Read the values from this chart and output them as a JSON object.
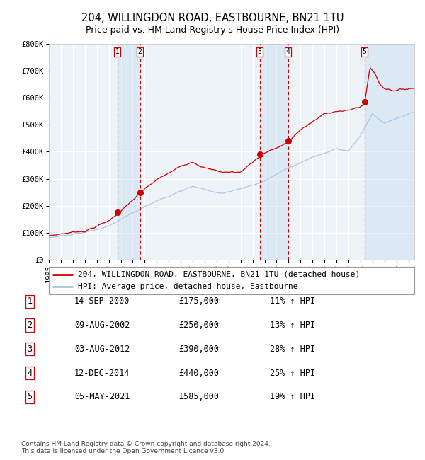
{
  "title": "204, WILLINGDON ROAD, EASTBOURNE, BN21 1TU",
  "subtitle": "Price paid vs. HM Land Registry's House Price Index (HPI)",
  "ylim": [
    0,
    800000
  ],
  "yticks": [
    0,
    100000,
    200000,
    300000,
    400000,
    500000,
    600000,
    700000,
    800000
  ],
  "ytick_labels": [
    "£0",
    "£100K",
    "£200K",
    "£300K",
    "£400K",
    "£500K",
    "£600K",
    "£700K",
    "£800K"
  ],
  "hpi_color": "#a8c8e8",
  "price_color": "#cc0000",
  "sale_marker_color": "#cc0000",
  "background_color": "#ffffff",
  "plot_bg_color": "#eef3f8",
  "grid_color": "#ffffff",
  "dashed_line_color": "#cc0000",
  "shade_color": "#c8dff0",
  "transactions": [
    {
      "label": "1",
      "date_str": "14-SEP-2000",
      "year": 2000.71,
      "price": 175000,
      "pct": "11%",
      "direction": "↑"
    },
    {
      "label": "2",
      "date_str": "09-AUG-2002",
      "year": 2002.61,
      "price": 250000,
      "pct": "13%",
      "direction": "↑"
    },
    {
      "label": "3",
      "date_str": "03-AUG-2012",
      "year": 2012.59,
      "price": 390000,
      "pct": "28%",
      "direction": "↑"
    },
    {
      "label": "4",
      "date_str": "12-DEC-2014",
      "year": 2014.95,
      "price": 440000,
      "pct": "25%",
      "direction": "↑"
    },
    {
      "label": "5",
      "date_str": "05-MAY-2021",
      "year": 2021.34,
      "price": 585000,
      "pct": "19%",
      "direction": "↑"
    }
  ],
  "legend_entries": [
    "204, WILLINGDON ROAD, EASTBOURNE, BN21 1TU (detached house)",
    "HPI: Average price, detached house, Eastbourne"
  ],
  "footer": "Contains HM Land Registry data © Crown copyright and database right 2024.\nThis data is licensed under the Open Government Licence v3.0.",
  "title_fontsize": 10.5,
  "subtitle_fontsize": 9,
  "tick_fontsize": 7.5,
  "legend_fontsize": 8,
  "table_fontsize": 8.5,
  "footer_fontsize": 6.5,
  "xlim_start": 1995,
  "xlim_end": 2025.5
}
